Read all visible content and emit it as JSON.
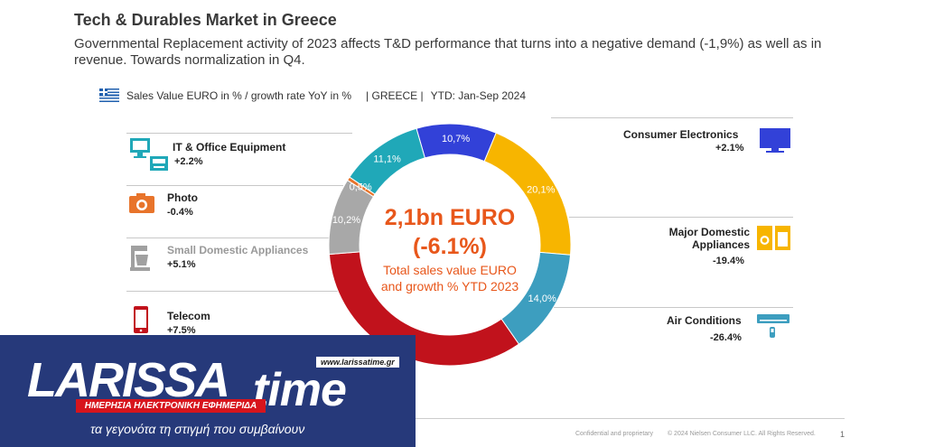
{
  "header": {
    "title": "Tech & Durables Market in Greece",
    "subtitle": "Governmental Replacement activity of 2023 affects T&D performance that turns into a negative demand (-1,9%) as well as in revenue. Towards normalization in Q4."
  },
  "legend_row": {
    "metric": "Sales Value EURO in % / growth rate YoY in %",
    "country": "| GREECE |",
    "period": "YTD: Jan-Sep 2024"
  },
  "colors": {
    "it_office": "#20a8b8",
    "consumer_electronics": "#3241d8",
    "major_domestic": "#f7b500",
    "air_conditions": "#3d9ebf",
    "telecom": "#c1121c",
    "small_domestic": "#a8a8a8",
    "photo": "#e8742b",
    "center_text": "#e8571b"
  },
  "left_categories": [
    {
      "name": "IT & Office Equipment",
      "growth": "+2.2%",
      "icon": "computer-printer-icon",
      "color": "#20a8b8"
    },
    {
      "name": "Photo",
      "growth": "-0.4%",
      "icon": "camera-icon",
      "color": "#e8742b"
    },
    {
      "name": "Small Domestic Appliances",
      "growth": "+5.1%",
      "icon": "mixer-icon",
      "color": "#a0a0a0"
    },
    {
      "name": "Telecom",
      "growth": "+7.5%",
      "icon": "smartphone-icon",
      "color": "#c1121c"
    }
  ],
  "right_categories": [
    {
      "name": "Consumer Electronics",
      "growth": "+2.1%",
      "icon": "tv-icon",
      "color": "#3241d8"
    },
    {
      "name": "Major Domestic Appliances",
      "name_line1": "Major Domestic",
      "name_line2": "Appliances",
      "growth": "-19.4%",
      "icon": "washing-machine-icon",
      "color": "#f7b500"
    },
    {
      "name": "Air Conditions",
      "growth": "-26.4%",
      "icon": "air-conditioner-icon",
      "color": "#3d9ebf"
    }
  ],
  "center": {
    "amount": "2,1bn EURO",
    "growth": "(-6.1%)",
    "note_line1": "Total sales value EURO",
    "note_line2": "and growth % YTD 2023"
  },
  "chart_data": {
    "type": "pie",
    "variant": "donut",
    "unit": "%",
    "slices": [
      {
        "name": "Consumer Electronics",
        "value": 10.7,
        "label": "10,7%",
        "color": "#3241d8"
      },
      {
        "name": "Major Domestic Appliances",
        "value": 20.1,
        "label": "20,1%",
        "color": "#f7b500"
      },
      {
        "name": "Air Conditions",
        "value": 14.0,
        "label": "14,0%",
        "color": "#3d9ebf"
      },
      {
        "name": "Telecom",
        "value": 33.4,
        "label": "%",
        "color": "#c1121c"
      },
      {
        "name": "Small Domestic Appliances",
        "value": 10.2,
        "label": "10,2%",
        "color": "#a8a8a8"
      },
      {
        "name": "Photo",
        "value": 0.5,
        "label": "0,5%",
        "color": "#e8742b"
      },
      {
        "name": "IT & Office Equipment",
        "value": 11.1,
        "label": "11,1%",
        "color": "#20a8b8"
      }
    ]
  },
  "footer": {
    "confidential": "Confidential and proprietary",
    "copyright": "© 2024 Nielsen Consumer LLC. All Rights Reserved.",
    "page": "1"
  },
  "overlay": {
    "logo_main": "LARISSA",
    "logo_time": "time",
    "url": "www.larissatime.gr",
    "strip": "ΗΜΕΡΗΣΙΑ ΗΛΕΚΤΡΟΝΙΚΗ ΕΦΗΜΕΡΙΔΑ",
    "slogan": "τα γεγονότα τη στιγμή που συμβαίνουν"
  }
}
